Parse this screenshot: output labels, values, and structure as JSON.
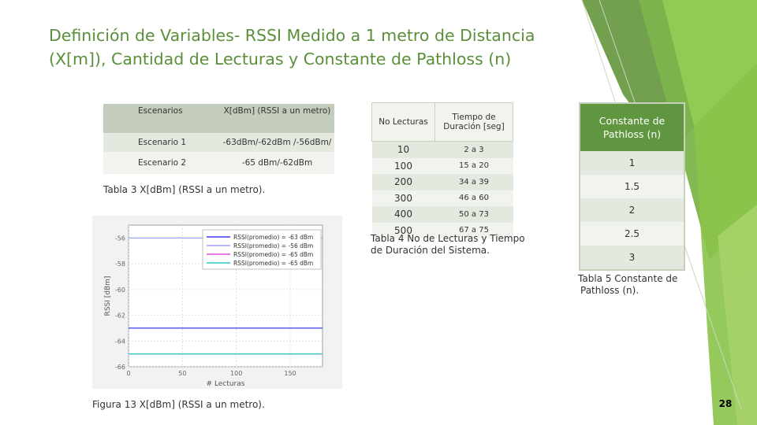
{
  "slide": {
    "title_line1": "Definición de Variables- RSSI Medido a 1 metro de Distancia",
    "title_line2": "(X[m]), Cantidad de Lecturas y Constante de Pathloss (n)",
    "page_number": "28",
    "accent_color": "#5a8f3a"
  },
  "table3": {
    "headers": [
      "Escenarios",
      "X[dBm] (RSSI a un metro)"
    ],
    "rows": [
      [
        "Escenario 1",
        "-63dBm/-62dBm /-56dBm/"
      ],
      [
        "Escenario 2",
        "-65 dBm/-62dBm"
      ]
    ],
    "caption": "Tabla 3 X[dBm] (RSSI a un metro)."
  },
  "table4": {
    "headers": [
      "No Lecturas",
      "Tiempo de Duración [seg]"
    ],
    "rows": [
      [
        "10",
        "2 a 3"
      ],
      [
        "100",
        "15 a 20"
      ],
      [
        "200",
        "34 a 39"
      ],
      [
        "300",
        "46 a 60"
      ],
      [
        "400",
        "50 a 73"
      ],
      [
        "500",
        "67 a 75"
      ]
    ],
    "caption_line1": "Tabla 4 No de Lecturas y Tiempo",
    "caption_line2": "de Duración del Sistema."
  },
  "table5": {
    "header": "Constante de Pathloss (n)",
    "rows": [
      "1",
      "1.5",
      "2",
      "2.5",
      "3"
    ],
    "caption_line1": "Tabla 5 Constante de",
    "caption_line2": "Pathloss (n)."
  },
  "figure": {
    "caption": "Figura 13 X[dBm] (RSSI a un metro)."
  },
  "chart_data": {
    "type": "line",
    "xlabel": "# Lecturas",
    "ylabel": "RSSI [dBm]",
    "xlim": [
      0,
      180
    ],
    "ylim": [
      -66,
      -55
    ],
    "x_ticks": [
      "0",
      "50",
      "100",
      "150"
    ],
    "y_ticks": [
      "-56",
      "-58",
      "-60",
      "-62",
      "-64",
      "-66"
    ],
    "legend_position": "top-right",
    "series": [
      {
        "name": "RSSI(promedio) = -63 dBm",
        "color": "#3a3af0",
        "values": [
          -63
        ]
      },
      {
        "name": "RSSI(promedio) = -56 dBm",
        "color": "#9aa0ff",
        "values": [
          -56
        ]
      },
      {
        "name": "RSSI(promedio) = -65 dBm",
        "color": "#e04adf",
        "values": [
          -65
        ]
      },
      {
        "name": "RSSI(promedio) = -65 dBm",
        "color": "#2fc7c7",
        "values": [
          -65
        ]
      }
    ]
  }
}
